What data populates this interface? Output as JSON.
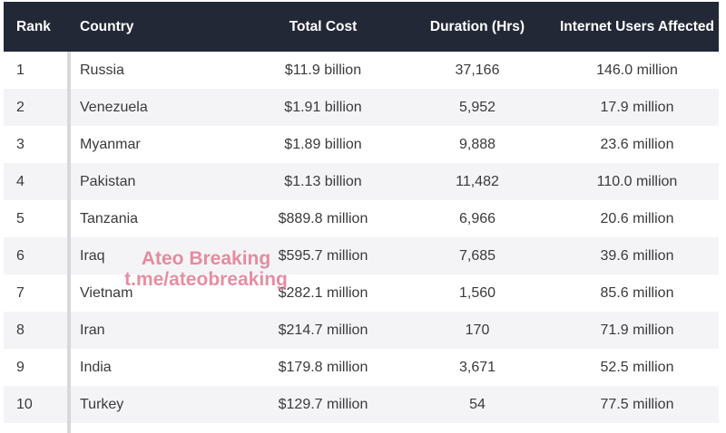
{
  "chart_data": {
    "type": "table",
    "title": "",
    "columns": [
      "Rank",
      "Country",
      "Total Cost",
      "Duration (Hrs)",
      "Internet Users Affected"
    ],
    "rows": [
      [
        "1",
        "Russia",
        "$11.9 billion",
        "37,166",
        "146.0 million"
      ],
      [
        "2",
        "Venezuela",
        "$1.91 billion",
        "5,952",
        "17.9 million"
      ],
      [
        "3",
        "Myanmar",
        "$1.89 billion",
        "9,888",
        "23.6 million"
      ],
      [
        "4",
        "Pakistan",
        "$1.13 billion",
        "11,482",
        "110.0 million"
      ],
      [
        "5",
        "Tanzania",
        "$889.8 million",
        "6,966",
        "20.6 million"
      ],
      [
        "6",
        "Iraq",
        "$595.7 million",
        "7,685",
        "39.6 million"
      ],
      [
        "7",
        "Vietnam",
        "$282.1 million",
        "1,560",
        "85.6 million"
      ],
      [
        "8",
        "Iran",
        "$214.7 million",
        "170",
        "71.9 million"
      ],
      [
        "9",
        "India",
        "$179.8 million",
        "3,671",
        "52.5 million"
      ],
      [
        "10",
        "Turkey",
        "$129.7 million",
        "54",
        "77.5 million"
      ]
    ],
    "layout": {
      "striped": true,
      "header_style": "dark",
      "rank_divider": true
    }
  },
  "watermark": {
    "line1": "Ateo Breaking",
    "line2": "t.me/ateobreaking"
  },
  "colors": {
    "header_bg": "#232837",
    "header_text": "#ffffff",
    "stripe_bg": "#f4f4f6",
    "body_text": "#3a3a3c",
    "divider": "#d8d8db",
    "watermark_pink": "#e2748c"
  }
}
